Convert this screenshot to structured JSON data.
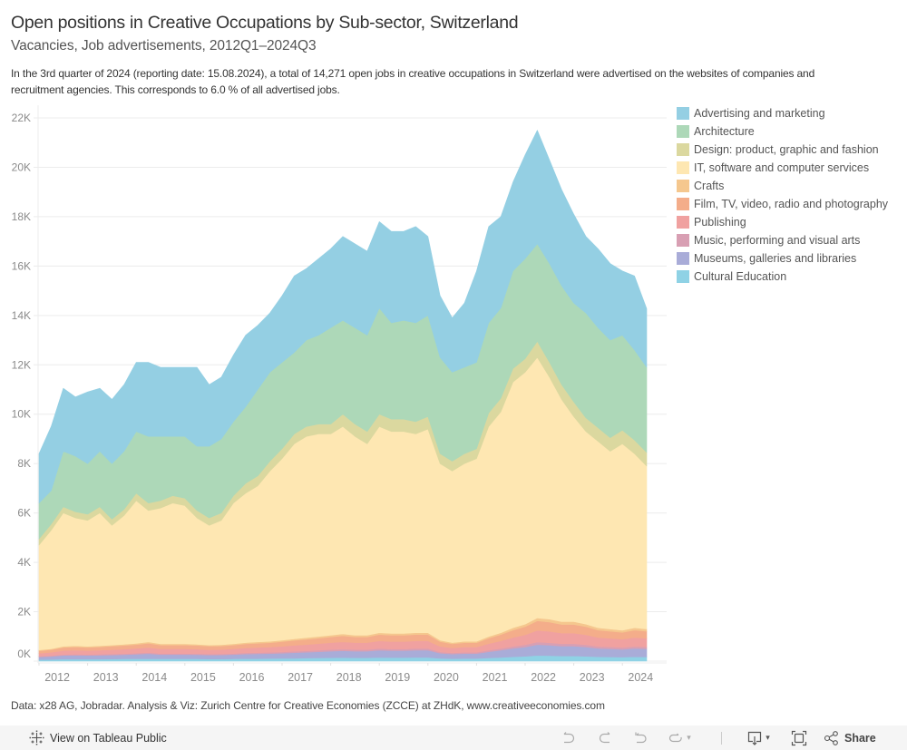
{
  "header": {
    "title": "Open positions in Creative Occupations by Sub-sector, Switzerland",
    "subtitle": "Vacancies, Job advertisements, 2012Q1–2024Q3",
    "description_lines": [
      "In the 3rd quarter of 2024 (reporting date: 15.08.2024), a total of 14,271 open jobs in creative occupations in Switzerland were advertised on the websites of companies and",
      "recruitment agencies. This corresponds to 6.0 % of all advertised jobs."
    ]
  },
  "source_note": "Data: x28 AG, Jobradar. Analysis & Viz: Zurich Centre for Creative Economies (ZCCE) at ZHdK, www.creativeeconomies.com",
  "toolbar": {
    "view_on_tableau_label": "View on Tableau Public",
    "share_label": "Share",
    "dropdown_glyph": "▾",
    "icons": [
      "tableau-logo-icon",
      "undo-icon",
      "redo-icon",
      "revert-icon",
      "refresh-icon",
      "download-icon",
      "fullscreen-icon",
      "share-icon"
    ]
  },
  "chart_data": {
    "type": "area",
    "stacked": true,
    "title": "Open positions in Creative Occupations by Sub-sector, Switzerland",
    "subtitle": "Vacancies, Job advertisements, 2012Q1–2024Q3",
    "xlabel": "",
    "ylabel": "",
    "ylim": [
      0,
      22000
    ],
    "grid": true,
    "legend_position": "right",
    "stack_order": "last series at bottom",
    "yticks": [
      {
        "value": 0,
        "label": "0K"
      },
      {
        "value": 2000,
        "label": "2K"
      },
      {
        "value": 4000,
        "label": "4K"
      },
      {
        "value": 6000,
        "label": "6K"
      },
      {
        "value": 8000,
        "label": "8K"
      },
      {
        "value": 10000,
        "label": "10K"
      },
      {
        "value": 12000,
        "label": "12K"
      },
      {
        "value": 14000,
        "label": "14K"
      },
      {
        "value": 16000,
        "label": "16K"
      },
      {
        "value": 18000,
        "label": "18K"
      },
      {
        "value": 20000,
        "label": "20K"
      },
      {
        "value": 22000,
        "label": "22K"
      }
    ],
    "xticks": [
      "2012",
      "2013",
      "2014",
      "2015",
      "2016",
      "2017",
      "2018",
      "2019",
      "2020",
      "2021",
      "2022",
      "2023",
      "2024"
    ],
    "x": [
      "2012Q1",
      "2012Q2",
      "2012Q3",
      "2012Q4",
      "2013Q1",
      "2013Q2",
      "2013Q3",
      "2013Q4",
      "2014Q1",
      "2014Q2",
      "2014Q3",
      "2014Q4",
      "2015Q1",
      "2015Q2",
      "2015Q3",
      "2015Q4",
      "2016Q1",
      "2016Q2",
      "2016Q3",
      "2016Q4",
      "2017Q1",
      "2017Q2",
      "2017Q3",
      "2017Q4",
      "2018Q1",
      "2018Q2",
      "2018Q3",
      "2018Q4",
      "2019Q1",
      "2019Q2",
      "2019Q3",
      "2019Q4",
      "2020Q1",
      "2020Q2",
      "2020Q3",
      "2020Q4",
      "2021Q1",
      "2021Q2",
      "2021Q3",
      "2021Q4",
      "2022Q1",
      "2022Q2",
      "2022Q3",
      "2022Q4",
      "2023Q1",
      "2023Q2",
      "2023Q3",
      "2023Q4",
      "2024Q1",
      "2024Q2",
      "2024Q3"
    ],
    "series": [
      {
        "name": "Advertising and marketing",
        "color": "#94cfe3",
        "values": [
          2000,
          2600,
          2550,
          2400,
          2900,
          2550,
          2600,
          2700,
          2800,
          3000,
          2800,
          2800,
          2800,
          3200,
          2500,
          2500,
          2700,
          2900,
          2600,
          2400,
          2700,
          3100,
          2900,
          3100,
          3200,
          3400,
          3400,
          3400,
          3500,
          3700,
          3600,
          3900,
          3200,
          2500,
          2200,
          2600,
          3700,
          3900,
          3700,
          3600,
          4200,
          4600,
          4200,
          3900,
          3600,
          3100,
          3200,
          3100,
          2600,
          3000,
          2371
        ]
      },
      {
        "name": "Architecture",
        "color": "#add8b8",
        "values": [
          1450,
          1350,
          2250,
          2250,
          2050,
          2250,
          2250,
          2350,
          2500,
          2700,
          2600,
          2400,
          2500,
          2600,
          2900,
          3000,
          3000,
          3100,
          3500,
          3600,
          3500,
          3300,
          3500,
          3600,
          3900,
          3800,
          3900,
          3900,
          4300,
          3900,
          4000,
          4000,
          4100,
          3900,
          3600,
          3500,
          3500,
          3650,
          3650,
          3950,
          4050,
          3950,
          4000,
          4000,
          4000,
          4250,
          4050,
          3950,
          3850,
          3650,
          3450
        ]
      },
      {
        "name": "Design: product, graphic and fashion",
        "color": "#dbd89f",
        "values": [
          250,
          250,
          250,
          250,
          250,
          250,
          250,
          250,
          300,
          300,
          300,
          300,
          300,
          300,
          300,
          300,
          300,
          400,
          400,
          400,
          400,
          400,
          400,
          400,
          400,
          500,
          500,
          500,
          500,
          500,
          500,
          500,
          500,
          400,
          400,
          400,
          400,
          550,
          550,
          550,
          550,
          650,
          600,
          600,
          600,
          550,
          550,
          550,
          550,
          550,
          550
        ]
      },
      {
        "name": "IT, software and computer services",
        "color": "#fee7b2",
        "values": [
          4250,
          4800,
          5400,
          5180,
          5100,
          5380,
          4850,
          5220,
          5780,
          5320,
          5500,
          5700,
          5600,
          5120,
          4850,
          5040,
          5700,
          6050,
          6320,
          6900,
          7350,
          7900,
          8150,
          8200,
          8150,
          8400,
          8050,
          7750,
          8350,
          8180,
          8180,
          8050,
          8250,
          7150,
          6950,
          7200,
          7400,
          8500,
          8950,
          9950,
          10200,
          10550,
          9800,
          9000,
          8300,
          7800,
          7550,
          7200,
          7550,
          7050,
          6600
        ]
      },
      {
        "name": "Crafts",
        "color": "#f5c78e",
        "values": [
          30,
          35,
          45,
          45,
          45,
          45,
          45,
          45,
          50,
          55,
          50,
          50,
          50,
          45,
          45,
          45,
          50,
          50,
          55,
          55,
          60,
          60,
          70,
          70,
          70,
          75,
          70,
          70,
          75,
          75,
          75,
          75,
          75,
          60,
          50,
          55,
          55,
          70,
          75,
          95,
          105,
          120,
          120,
          115,
          115,
          105,
          95,
          90,
          85,
          95,
          90
        ]
      },
      {
        "name": "Film, TV, video, radio and photography",
        "color": "#f4ad8a",
        "values": [
          100,
          110,
          130,
          135,
          130,
          135,
          145,
          150,
          155,
          170,
          155,
          155,
          155,
          150,
          145,
          145,
          155,
          165,
          175,
          175,
          190,
          200,
          210,
          220,
          230,
          245,
          230,
          230,
          255,
          250,
          250,
          255,
          255,
          190,
          165,
          175,
          175,
          220,
          255,
          295,
          330,
          385,
          375,
          350,
          350,
          330,
          295,
          285,
          275,
          295,
          285
        ]
      },
      {
        "name": "Publishing",
        "color": "#f0a1a0",
        "values": [
          120,
          135,
          160,
          165,
          160,
          165,
          175,
          185,
          195,
          210,
          190,
          190,
          190,
          185,
          175,
          180,
          190,
          205,
          210,
          215,
          230,
          245,
          255,
          270,
          285,
          295,
          285,
          285,
          310,
          305,
          305,
          310,
          310,
          230,
          205,
          215,
          215,
          270,
          310,
          365,
          405,
          470,
          460,
          430,
          430,
          405,
          365,
          350,
          340,
          365,
          350
        ]
      },
      {
        "name": "Music, performing and visual arts",
        "color": "#d89fb3",
        "values": [
          30,
          30,
          35,
          40,
          35,
          40,
          40,
          40,
          45,
          45,
          40,
          40,
          40,
          40,
          40,
          40,
          40,
          45,
          45,
          50,
          50,
          55,
          55,
          60,
          65,
          65,
          65,
          65,
          70,
          65,
          65,
          70,
          70,
          50,
          45,
          50,
          50,
          60,
          70,
          80,
          90,
          105,
          100,
          95,
          95,
          90,
          80,
          80,
          75,
          80,
          80
        ]
      },
      {
        "name": "Museums, galleries and libraries",
        "color": "#a9acd8",
        "values": [
          110,
          125,
          150,
          155,
          150,
          155,
          160,
          170,
          180,
          200,
          175,
          175,
          175,
          170,
          160,
          165,
          175,
          185,
          195,
          200,
          210,
          225,
          235,
          250,
          265,
          275,
          265,
          265,
          290,
          280,
          280,
          290,
          290,
          210,
          185,
          200,
          200,
          250,
          290,
          340,
          375,
          440,
          425,
          400,
          400,
          375,
          340,
          325,
          315,
          340,
          325
        ]
      },
      {
        "name": "Cultural Education",
        "color": "#8fd2e5",
        "values": [
          60,
          65,
          80,
          80,
          80,
          80,
          85,
          90,
          95,
          100,
          90,
          90,
          90,
          90,
          85,
          85,
          90,
          100,
          100,
          105,
          110,
          115,
          125,
          130,
          135,
          145,
          135,
          135,
          150,
          145,
          145,
          150,
          150,
          110,
          100,
          105,
          105,
          130,
          150,
          175,
          195,
          230,
          220,
          210,
          210,
          195,
          175,
          170,
          160,
          175,
          170
        ]
      }
    ]
  }
}
